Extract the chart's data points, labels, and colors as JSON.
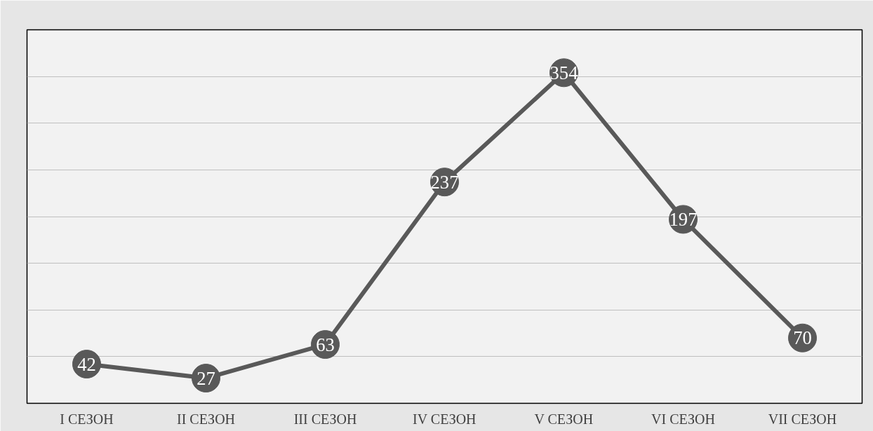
{
  "chart_data": {
    "type": "line",
    "categories": [
      "I СЕЗОН",
      "II СЕЗОН",
      "III СЕЗОН",
      "IV СЕЗОН",
      "V СЕЗОН",
      "VI СЕЗОН",
      "VII СЕЗОН"
    ],
    "series": [
      {
        "color": "#595959",
        "values": [
          42,
          27,
          63,
          237,
          354,
          197,
          70
        ]
      }
    ],
    "ylim": [
      0,
      400
    ],
    "yticks": [
      {
        "value": 0,
        "label": null
      },
      {
        "value": 50,
        "label": null
      },
      {
        "value": 100,
        "label": null
      },
      {
        "value": 150,
        "label": null
      },
      {
        "value": 200,
        "label": null
      },
      {
        "value": 250,
        "label": null
      },
      {
        "value": 300,
        "label": null
      },
      {
        "value": 350,
        "label": null
      },
      {
        "value": 400,
        "label": null
      }
    ],
    "tick_labels": "x",
    "grid": "y",
    "marker": "circle",
    "line_style": "solid",
    "data_labels": true
  }
}
